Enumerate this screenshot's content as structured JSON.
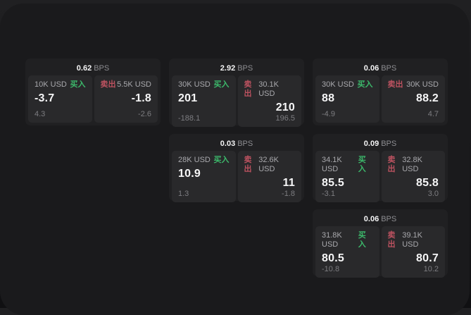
{
  "theme": {
    "page_bg": "#19191b",
    "panel_bg": "#1a1a1c",
    "card_bg": "#202022",
    "tile_bg": "#29292b",
    "buy_color": "#3cb96b",
    "sell_color": "#bd5260"
  },
  "bps_unit": "BPS",
  "cards": [
    {
      "bps_value": "0.62",
      "buy": {
        "size": "10K USD",
        "side_label": "买入",
        "price": "-3.7",
        "delta": "4.3"
      },
      "sell": {
        "size": "5.5K USD",
        "side_label": "卖出",
        "price": "-1.8",
        "delta": "-2.6"
      }
    },
    {
      "bps_value": "2.92",
      "buy": {
        "size": "30K USD",
        "side_label": "买入",
        "price": "201",
        "delta": "-188.1"
      },
      "sell": {
        "size": "30.1K USD",
        "side_label": "卖出",
        "price": "210",
        "delta": "196.5"
      }
    },
    {
      "bps_value": "0.06",
      "buy": {
        "size": "30K USD",
        "side_label": "买入",
        "price": "88",
        "delta": "-4.9"
      },
      "sell": {
        "size": "30K USD",
        "side_label": "卖出",
        "price": "88.2",
        "delta": "4.7"
      }
    },
    {
      "bps_value": "0.03",
      "buy": {
        "size": "28K USD",
        "side_label": "买入",
        "price": "10.9",
        "delta": "1.3"
      },
      "sell": {
        "size": "32.6K USD",
        "side_label": "卖出",
        "price": "11",
        "delta": "-1.8"
      }
    },
    {
      "bps_value": "0.09",
      "buy": {
        "size": "34.1K USD",
        "side_label": "买入",
        "price": "85.5",
        "delta": "-3.1"
      },
      "sell": {
        "size": "32.8K USD",
        "side_label": "卖出",
        "price": "85.8",
        "delta": "3.0"
      }
    },
    {
      "bps_value": "0.06",
      "buy": {
        "size": "31.8K USD",
        "side_label": "买入",
        "price": "80.5",
        "delta": "-10.8"
      },
      "sell": {
        "size": "39.1K USD",
        "side_label": "卖出",
        "price": "80.7",
        "delta": "10.2"
      }
    }
  ]
}
